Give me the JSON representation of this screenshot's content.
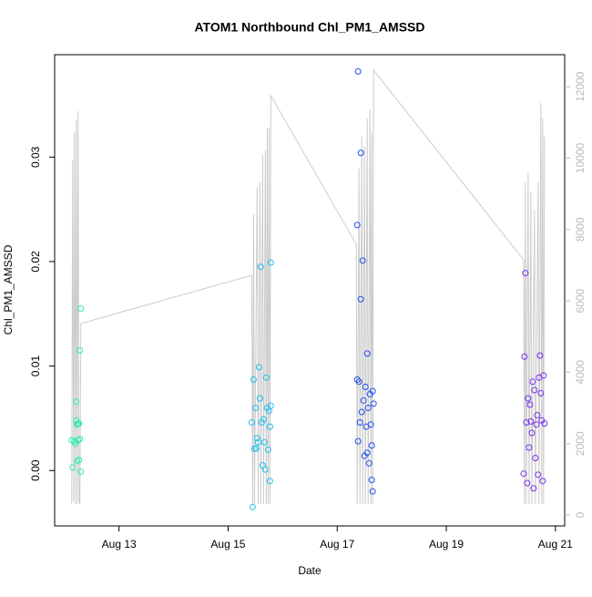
{
  "chart_data": {
    "type": "scatter",
    "title": "ATOM1 Northbound Chl_PM1_AMSSD",
    "x_label": "Date",
    "y_label": "Chl_PM1_AMSSD",
    "xlim": [
      11.82,
      21.17
    ],
    "ylim": [
      -0.0053,
      0.0398
    ],
    "y2lim": [
      -306,
      12899
    ],
    "xticks": [
      {
        "value": 13,
        "label": "Aug 13"
      },
      {
        "value": 15,
        "label": "Aug 15"
      },
      {
        "value": 17,
        "label": "Aug 17"
      },
      {
        "value": 19,
        "label": "Aug 19"
      },
      {
        "value": 21,
        "label": "Aug 21"
      }
    ],
    "yticks": [
      {
        "value": 0,
        "label": "0.00"
      },
      0.01,
      0.02,
      0.03
    ],
    "y2ticks": [
      0,
      2000,
      4000,
      6000,
      8000,
      10000,
      12000
    ],
    "series": [
      {
        "type": "line",
        "axis": "y2",
        "color": "#cccccc",
        "x": [
          12.133,
          12.15,
          12.167,
          12.183,
          12.2,
          12.217,
          12.233,
          12.25,
          12.267,
          12.283,
          12.3,
          15.433,
          15.45,
          15.467,
          15.483,
          15.533,
          15.55,
          15.583,
          15.6,
          15.633,
          15.65,
          15.683,
          15.7,
          15.717,
          15.733,
          15.75,
          15.767,
          15.783,
          17.35,
          17.367,
          17.4,
          17.417,
          17.45,
          17.467,
          17.5,
          17.517,
          17.55,
          17.567,
          17.6,
          17.617,
          17.633,
          17.65,
          17.667,
          20.417,
          20.433,
          20.45,
          20.467,
          20.5,
          20.517,
          20.55,
          20.567,
          20.617,
          20.633,
          20.683,
          20.7,
          20.733,
          20.75,
          20.767,
          20.783,
          20.8
        ],
        "values": [
          306,
          9962,
          383,
          10728,
          306,
          11060,
          306,
          11315,
          383,
          306,
          5364,
          6718,
          306,
          8429,
          306,
          9195,
          306,
          9323,
          306,
          10089,
          306,
          10217,
          306,
          10856,
          306,
          10856,
          306,
          11750,
          7586,
          306,
          9706,
          306,
          10600,
          306,
          10345,
          306,
          11111,
          306,
          11367,
          306,
          10728,
          306,
          12465,
          7152,
          306,
          9323,
          306,
          9579,
          306,
          9068,
          306,
          8557,
          306,
          9323,
          306,
          11545,
          306,
          11111,
          306,
          10600
        ]
      },
      {
        "type": "scatter",
        "color": "#2ef0a8",
        "x": [
          12.133,
          12.15,
          12.183,
          12.2,
          12.217,
          12.217,
          12.233,
          12.233,
          12.25,
          12.25,
          12.267,
          12.267,
          12.283,
          12.283,
          12.3,
          12.3
        ],
        "values": [
          0.0029,
          0.0003,
          0.0028,
          0.0026,
          0.0048,
          0.0066,
          0.0009,
          0.0044,
          0.0045,
          0.0029,
          0.001,
          0.0045,
          0.0115,
          0.003,
          -0.0001,
          0.0155
        ]
      },
      {
        "type": "scatter",
        "color": "#1fc0ee",
        "x": [
          15.433,
          15.45,
          15.467,
          15.483,
          15.5,
          15.517,
          15.533,
          15.55,
          15.567,
          15.583,
          15.6,
          15.617,
          15.633,
          15.65,
          15.667,
          15.683,
          15.7,
          15.717,
          15.733,
          15.75,
          15.767,
          15.783,
          15.767,
          15.783
        ],
        "values": [
          0.0046,
          -0.0035,
          0.0087,
          0.0021,
          0.006,
          0.0021,
          0.0031,
          0.0027,
          0.0099,
          0.0069,
          0.0195,
          0.0046,
          0.0005,
          0.0049,
          0.0027,
          0.0001,
          0.0089,
          0.006,
          0.002,
          0.0057,
          0.0042,
          0.0199,
          -0.001,
          0.0062
        ]
      },
      {
        "type": "scatter",
        "color": "#2050f0",
        "x": [
          17.383,
          17.367,
          17.367,
          17.383,
          17.4,
          17.417,
          17.433,
          17.433,
          17.45,
          17.467,
          17.483,
          17.5,
          17.517,
          17.533,
          17.55,
          17.567,
          17.583,
          17.6,
          17.617,
          17.633,
          17.65,
          17.65,
          17.667,
          17.633,
          17.55
        ],
        "values": [
          0.0382,
          0.0235,
          0.0087,
          0.0028,
          0.0085,
          0.0046,
          0.0304,
          0.0164,
          0.0056,
          0.0201,
          0.0067,
          0.0014,
          0.008,
          0.0042,
          0.0112,
          0.006,
          0.0007,
          0.0073,
          0.0044,
          -0.0009,
          0.0076,
          -0.002,
          0.0064,
          0.0024,
          0.0017
        ]
      },
      {
        "type": "scatter",
        "color": "#7a30f0",
        "x": [
          20.45,
          20.433,
          20.417,
          20.467,
          20.483,
          20.5,
          20.517,
          20.533,
          20.55,
          20.567,
          20.583,
          20.6,
          20.617,
          20.633,
          20.65,
          20.667,
          20.683,
          20.7,
          20.717,
          20.733,
          20.75,
          20.767,
          20.783,
          20.8
        ],
        "values": [
          0.0189,
          0.0109,
          -0.0003,
          0.0046,
          -0.0012,
          0.0069,
          0.0022,
          0.0063,
          0.0047,
          0.0036,
          0.0085,
          -0.0017,
          0.0077,
          0.0012,
          0.0044,
          0.0053,
          -0.0004,
          0.0089,
          0.011,
          0.0074,
          0.0048,
          -0.001,
          0.0091,
          0.0045
        ]
      }
    ]
  }
}
